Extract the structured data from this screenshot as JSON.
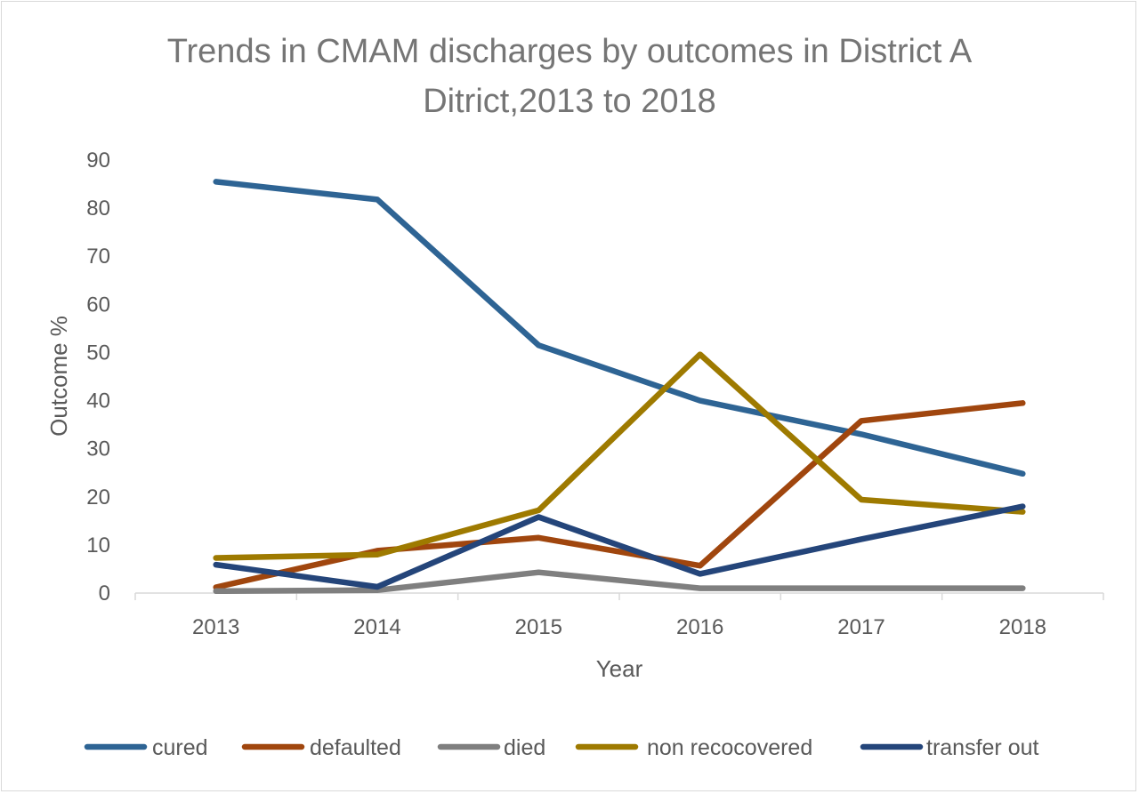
{
  "chart_data": {
    "type": "line",
    "title_line1": "Trends in CMAM discharges by outcomes in District A",
    "title_line2": "Ditrict,2013 to 2018",
    "xlabel": "Year",
    "ylabel": "Outcome %",
    "ylim": [
      0,
      90
    ],
    "yticks": [
      "0",
      "10",
      "20",
      "30",
      "40",
      "50",
      "60",
      "70",
      "80",
      "90"
    ],
    "categories": [
      "2013",
      "2014",
      "2015",
      "2016",
      "2017",
      "2018"
    ],
    "grid": false,
    "legend_position": "bottom",
    "series": [
      {
        "name": "cured",
        "color": "#2e6494",
        "values": [
          85.5,
          81.8,
          51.5,
          40,
          33,
          24.8
        ]
      },
      {
        "name": "defaulted",
        "color": "#a0460e",
        "values": [
          1.2,
          8.8,
          11.5,
          5.7,
          35.8,
          39.5
        ]
      },
      {
        "name": "died",
        "color": "#7f7f7f",
        "values": [
          0.4,
          0.6,
          4.3,
          1,
          1,
          1
        ]
      },
      {
        "name": "non recocovered",
        "color": "#9e7a00",
        "values": [
          7.3,
          8,
          17.2,
          49.6,
          19.4,
          16.9
        ]
      },
      {
        "name": "transfer out",
        "color": "#24457a",
        "values": [
          5.9,
          1.3,
          15.8,
          4,
          11.2,
          18
        ]
      }
    ]
  }
}
